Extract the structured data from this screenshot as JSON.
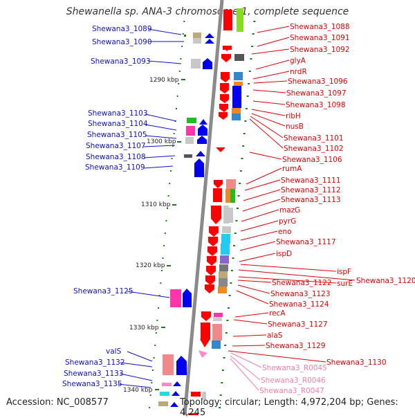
{
  "title": "Shewanella sp. ANA-3 chromosome 1, complete sequence",
  "footer": {
    "accession": "Accession: NC_008577",
    "summary": "Topology: circular; Length: 4,972,204 bp; Genes: 4,245"
  },
  "colors": {
    "left_label": "#1010c8",
    "right_label": "#e00000",
    "rna_label": "#f07fa8",
    "tick": "#1a7a1a",
    "backbone": "#8a8a8a"
  },
  "scale": [
    "1290 kbp",
    "1300 kbp",
    "1310 kbp",
    "1320 kbp",
    "1330 kbp",
    "1340 kbp"
  ],
  "left_labels": [
    "Shewana3_1089",
    "Shewana3_1090",
    "Shewana3_1093",
    "Shewana3_1103",
    "Shewana3_1104",
    "Shewana3_1105",
    "Shewana3_1107",
    "Shewana3_1108",
    "Shewana3_1109",
    "Shewana3_1125",
    "valS",
    "Shewana3_1132",
    "Shewana3_1133",
    "Shewana3_1135"
  ],
  "right_labels": [
    "Shewana3_1088",
    "Shewana3_1091",
    "Shewana3_1092",
    "glyA",
    "nrdR",
    "Shewana3_1096",
    "Shewana3_1097",
    "Shewana3_1098",
    "ribH",
    "nusB",
    "Shewana3_1101",
    "Shewana3_1102",
    "Shewana3_1106",
    "rumA",
    "Shewana3_1111",
    "Shewana3_1112",
    "Shewana3_1113",
    "mazG",
    "pyrG",
    "eno",
    "Shewana3_1117",
    "ispD",
    "ispF",
    "Shewana3_1120",
    "surE",
    "Shewana3_1122",
    "Shewana3_1123",
    "Shewana3_1124",
    "recA",
    "Shewana3_1127",
    "alaS",
    "Shewana3_1129",
    "Shewana3_1130"
  ],
  "rna_labels": [
    "Shewana3_R0045",
    "Shewana3_R0046",
    "Shewana3_R0047"
  ]
}
